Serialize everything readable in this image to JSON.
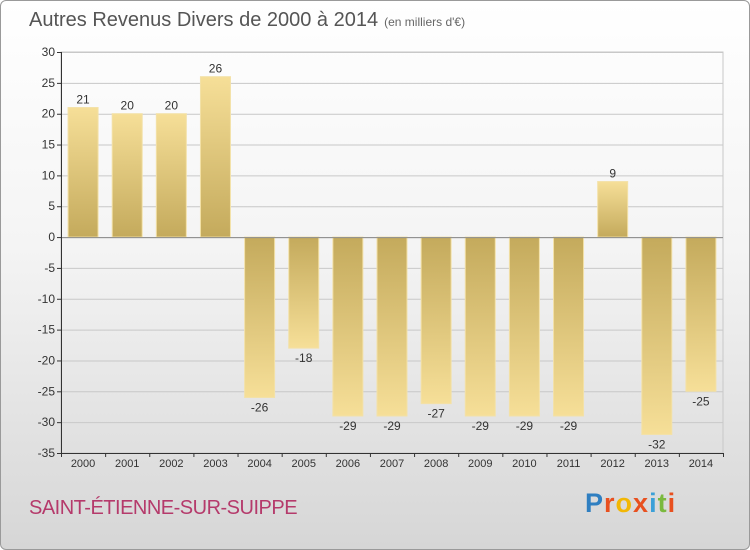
{
  "title": "Autres Revenus Divers de 2000 à 2014",
  "subtitle": "(en milliers d'€)",
  "commune": "SAINT-ÉTIENNE-SUR-SUIPPE",
  "logo": {
    "text": "Proxiti",
    "letters": [
      {
        "ch": "P",
        "color": "#2f7fc1"
      },
      {
        "ch": "r",
        "color": "#e8501f"
      },
      {
        "ch": "o",
        "color": "#f2b705"
      },
      {
        "ch": "x",
        "color": "#e8501f"
      },
      {
        "ch": "i",
        "color": "#3aa0d8"
      },
      {
        "ch": "t",
        "color": "#7ab93e"
      },
      {
        "ch": "i",
        "color": "#e8501f"
      }
    ]
  },
  "colors": {
    "bar_light": "#f6df98",
    "bar_dark": "#c4aa5c",
    "axis": "#333333",
    "grid": "#c8c8c8"
  },
  "chart_data": {
    "type": "bar",
    "categories": [
      "2000",
      "2001",
      "2002",
      "2003",
      "2004",
      "2005",
      "2006",
      "2007",
      "2008",
      "2009",
      "2010",
      "2011",
      "2012",
      "2013",
      "2014"
    ],
    "values": [
      21,
      20,
      20,
      26,
      -26,
      -18,
      -29,
      -29,
      -27,
      -29,
      -29,
      -29,
      9,
      -32,
      -25
    ],
    "ylim": [
      -35,
      30
    ],
    "yticks": [
      30,
      25,
      20,
      15,
      10,
      5,
      0,
      -5,
      -10,
      -15,
      -20,
      -25,
      -30,
      -35
    ],
    "grid": true,
    "xlabel": "",
    "ylabel": ""
  }
}
